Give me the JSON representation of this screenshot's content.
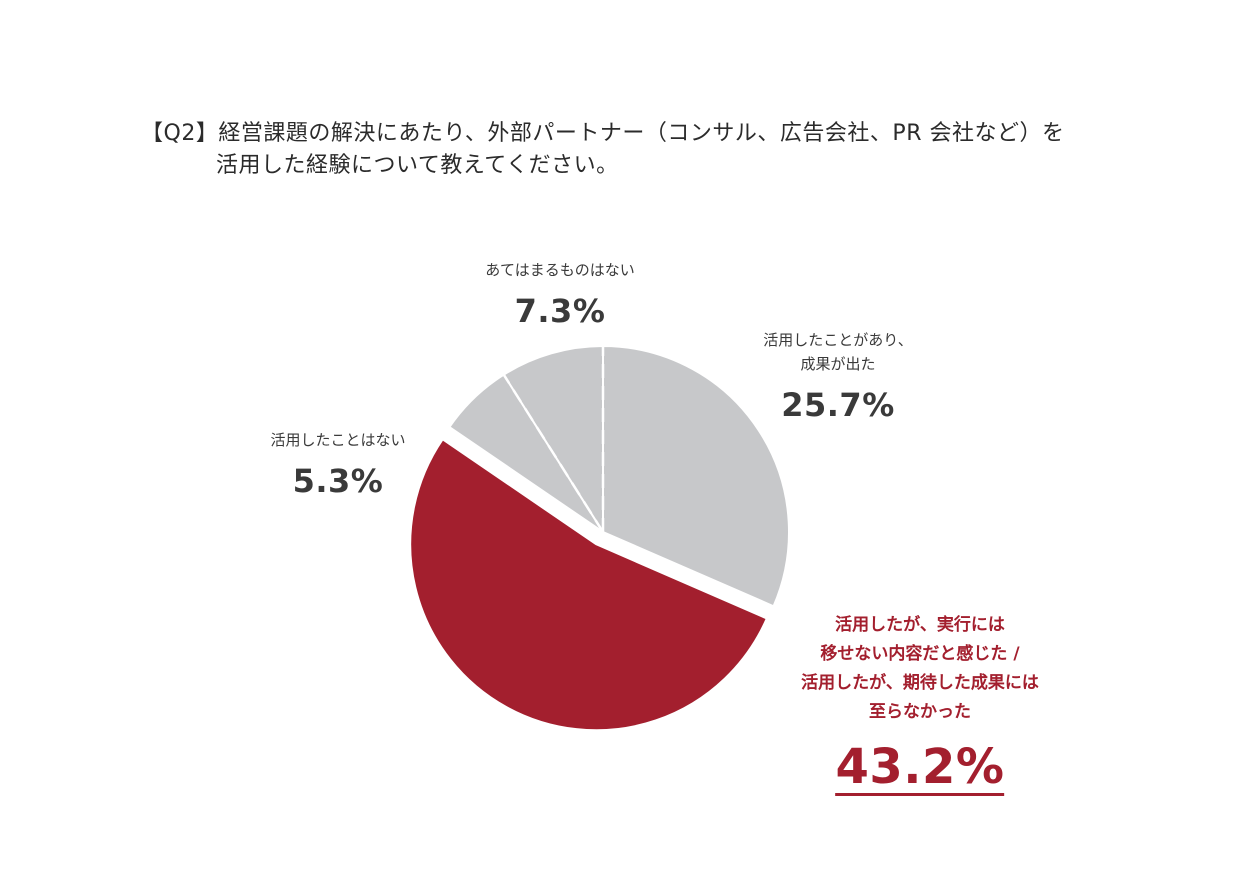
{
  "question": {
    "line1": "【Q2】経営課題の解決にあたり、外部パートナー（コンサル、広告会社、PR 会社など）を",
    "line2": "活用した経験について教えてください。"
  },
  "chart_data": {
    "type": "pie",
    "title": "【Q2】経営課題の解決にあたり、外部パートナー（コンサル、広告会社、PR 会社など）を活用した経験について教えてください。",
    "slices": [
      {
        "label": "活用したことがあり、成果が出た",
        "label_lines": [
          "活用したことがあり、",
          "成果が出た"
        ],
        "value": 25.7,
        "display": "25.7%",
        "color": "#c7c8ca"
      },
      {
        "label": "活用したが、実行には移せない内容だと感じた / 活用したが、期待した成果には至らなかった",
        "label_lines": [
          "活用したが、実行には",
          "移せない内容だと感じた /",
          "活用したが、期待した成果には",
          "至らなかった"
        ],
        "value": 43.2,
        "display": "43.2%",
        "color": "#a31f2e",
        "highlight": true
      },
      {
        "label": "活用したことはない",
        "label_lines": [
          "活用したことはない"
        ],
        "value": 5.3,
        "display": "5.3%",
        "color": "#c7c8ca"
      },
      {
        "label": "あてはまるものはない",
        "label_lines": [
          "あてはまるものはない"
        ],
        "value": 7.3,
        "display": "7.3%",
        "color": "#c7c8ca"
      }
    ]
  }
}
